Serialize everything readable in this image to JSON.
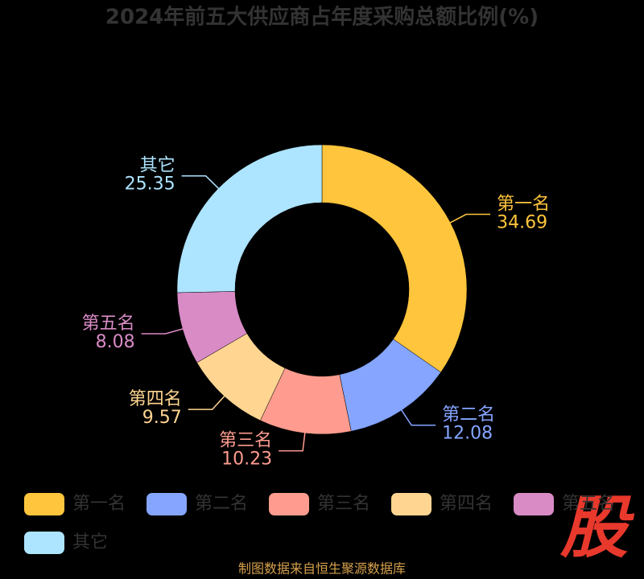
{
  "chart_data": {
    "type": "donut",
    "title": "2024年前五大供应商占年度采购总额比例(%)",
    "categories": [
      "第一名",
      "第二名",
      "第三名",
      "第四名",
      "第五名",
      "其它"
    ],
    "values": [
      34.69,
      12.08,
      10.23,
      9.57,
      8.08,
      25.35
    ],
    "colors": [
      "#ffc53d",
      "#85a5ff",
      "#ff9c8f",
      "#ffd591",
      "#d98bc6",
      "#ade4ff"
    ],
    "legend": "bottom"
  },
  "source": "制图数据来自恒生聚源数据库",
  "watermark": "股"
}
